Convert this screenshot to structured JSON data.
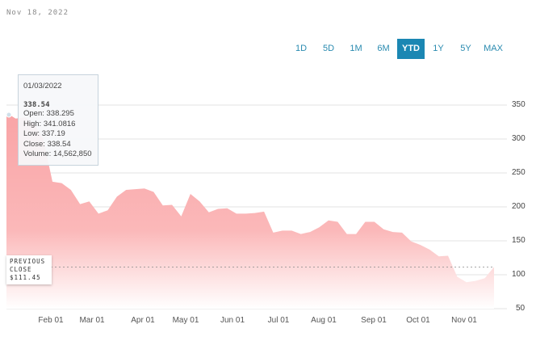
{
  "header": {
    "date": "Nov 18, 2022"
  },
  "range_buttons": [
    {
      "label": "1D",
      "active": false
    },
    {
      "label": "5D",
      "active": false
    },
    {
      "label": "1M",
      "active": false
    },
    {
      "label": "6M",
      "active": false
    },
    {
      "label": "YTD",
      "active": true
    },
    {
      "label": "1Y",
      "active": false
    },
    {
      "label": "5Y",
      "active": false
    },
    {
      "label": "MAX",
      "active": false
    }
  ],
  "tooltip": {
    "date": "01/03/2022",
    "close_value": "338.54",
    "open": "Open: 338.295",
    "high": "High: 341.0816",
    "low": "Low: 337.19",
    "close": "Close: 338.54",
    "volume": "Volume: 14,562,850"
  },
  "previous_close": {
    "line1": "PREVIOUS",
    "line2": "CLOSE",
    "value": "$111.45"
  },
  "colors": {
    "area_top": "#f9a4a6",
    "area_bottom": "#ffffff",
    "accent": "#1b87b3",
    "grid": "#e3e3e3"
  },
  "chart_data": {
    "type": "area",
    "title": "",
    "xlabel": "",
    "ylabel": "",
    "ylim": [
      50,
      350
    ],
    "yticks": [
      350,
      300,
      250,
      200,
      150,
      100,
      50
    ],
    "xticks": [
      "Feb 01",
      "Mar 01",
      "Apr 01",
      "May 01",
      "Jun 01",
      "Jul 01",
      "Aug 01",
      "Sep 01",
      "Oct 01",
      "Nov 01"
    ],
    "grid": true,
    "legend": "none",
    "reference_line": {
      "label": "Previous Close",
      "value": 111.45
    },
    "series": [
      {
        "name": "Close",
        "x": [
          "Jan 03",
          "Jan 07",
          "Jan 12",
          "Jan 18",
          "Jan 24",
          "Jan 28",
          "Feb 01",
          "Feb 08",
          "Feb 15",
          "Feb 22",
          "Mar 01",
          "Mar 08",
          "Mar 15",
          "Mar 22",
          "Mar 29",
          "Apr 01",
          "Apr 08",
          "Apr 14",
          "Apr 22",
          "Apr 29",
          "May 03",
          "May 09",
          "May 13",
          "May 20",
          "May 27",
          "Jun 01",
          "Jun 08",
          "Jun 16",
          "Jun 23",
          "Jun 30",
          "Jul 07",
          "Jul 14",
          "Jul 21",
          "Jul 28",
          "Aug 01",
          "Aug 08",
          "Aug 15",
          "Aug 22",
          "Aug 29",
          "Sep 01",
          "Sep 08",
          "Sep 15",
          "Sep 22",
          "Sep 29",
          "Oct 03",
          "Oct 10",
          "Oct 17",
          "Oct 24",
          "Oct 27",
          "Nov 01",
          "Nov 04",
          "Nov 10",
          "Nov 15",
          "Nov 18"
        ],
        "values": [
          338.54,
          330,
          335,
          320,
          300,
          240,
          232,
          225,
          207,
          205,
          190,
          198,
          212,
          225,
          229,
          224,
          222,
          205,
          200,
          186,
          222,
          205,
          192,
          200,
          195,
          190,
          193,
          188,
          193,
          165,
          162,
          165,
          163,
          160,
          170,
          183,
          175,
          160,
          163,
          175,
          178,
          170,
          160,
          162,
          152,
          141,
          137,
          130,
          125,
          97,
          92,
          88,
          95,
          111.45
        ]
      }
    ]
  }
}
